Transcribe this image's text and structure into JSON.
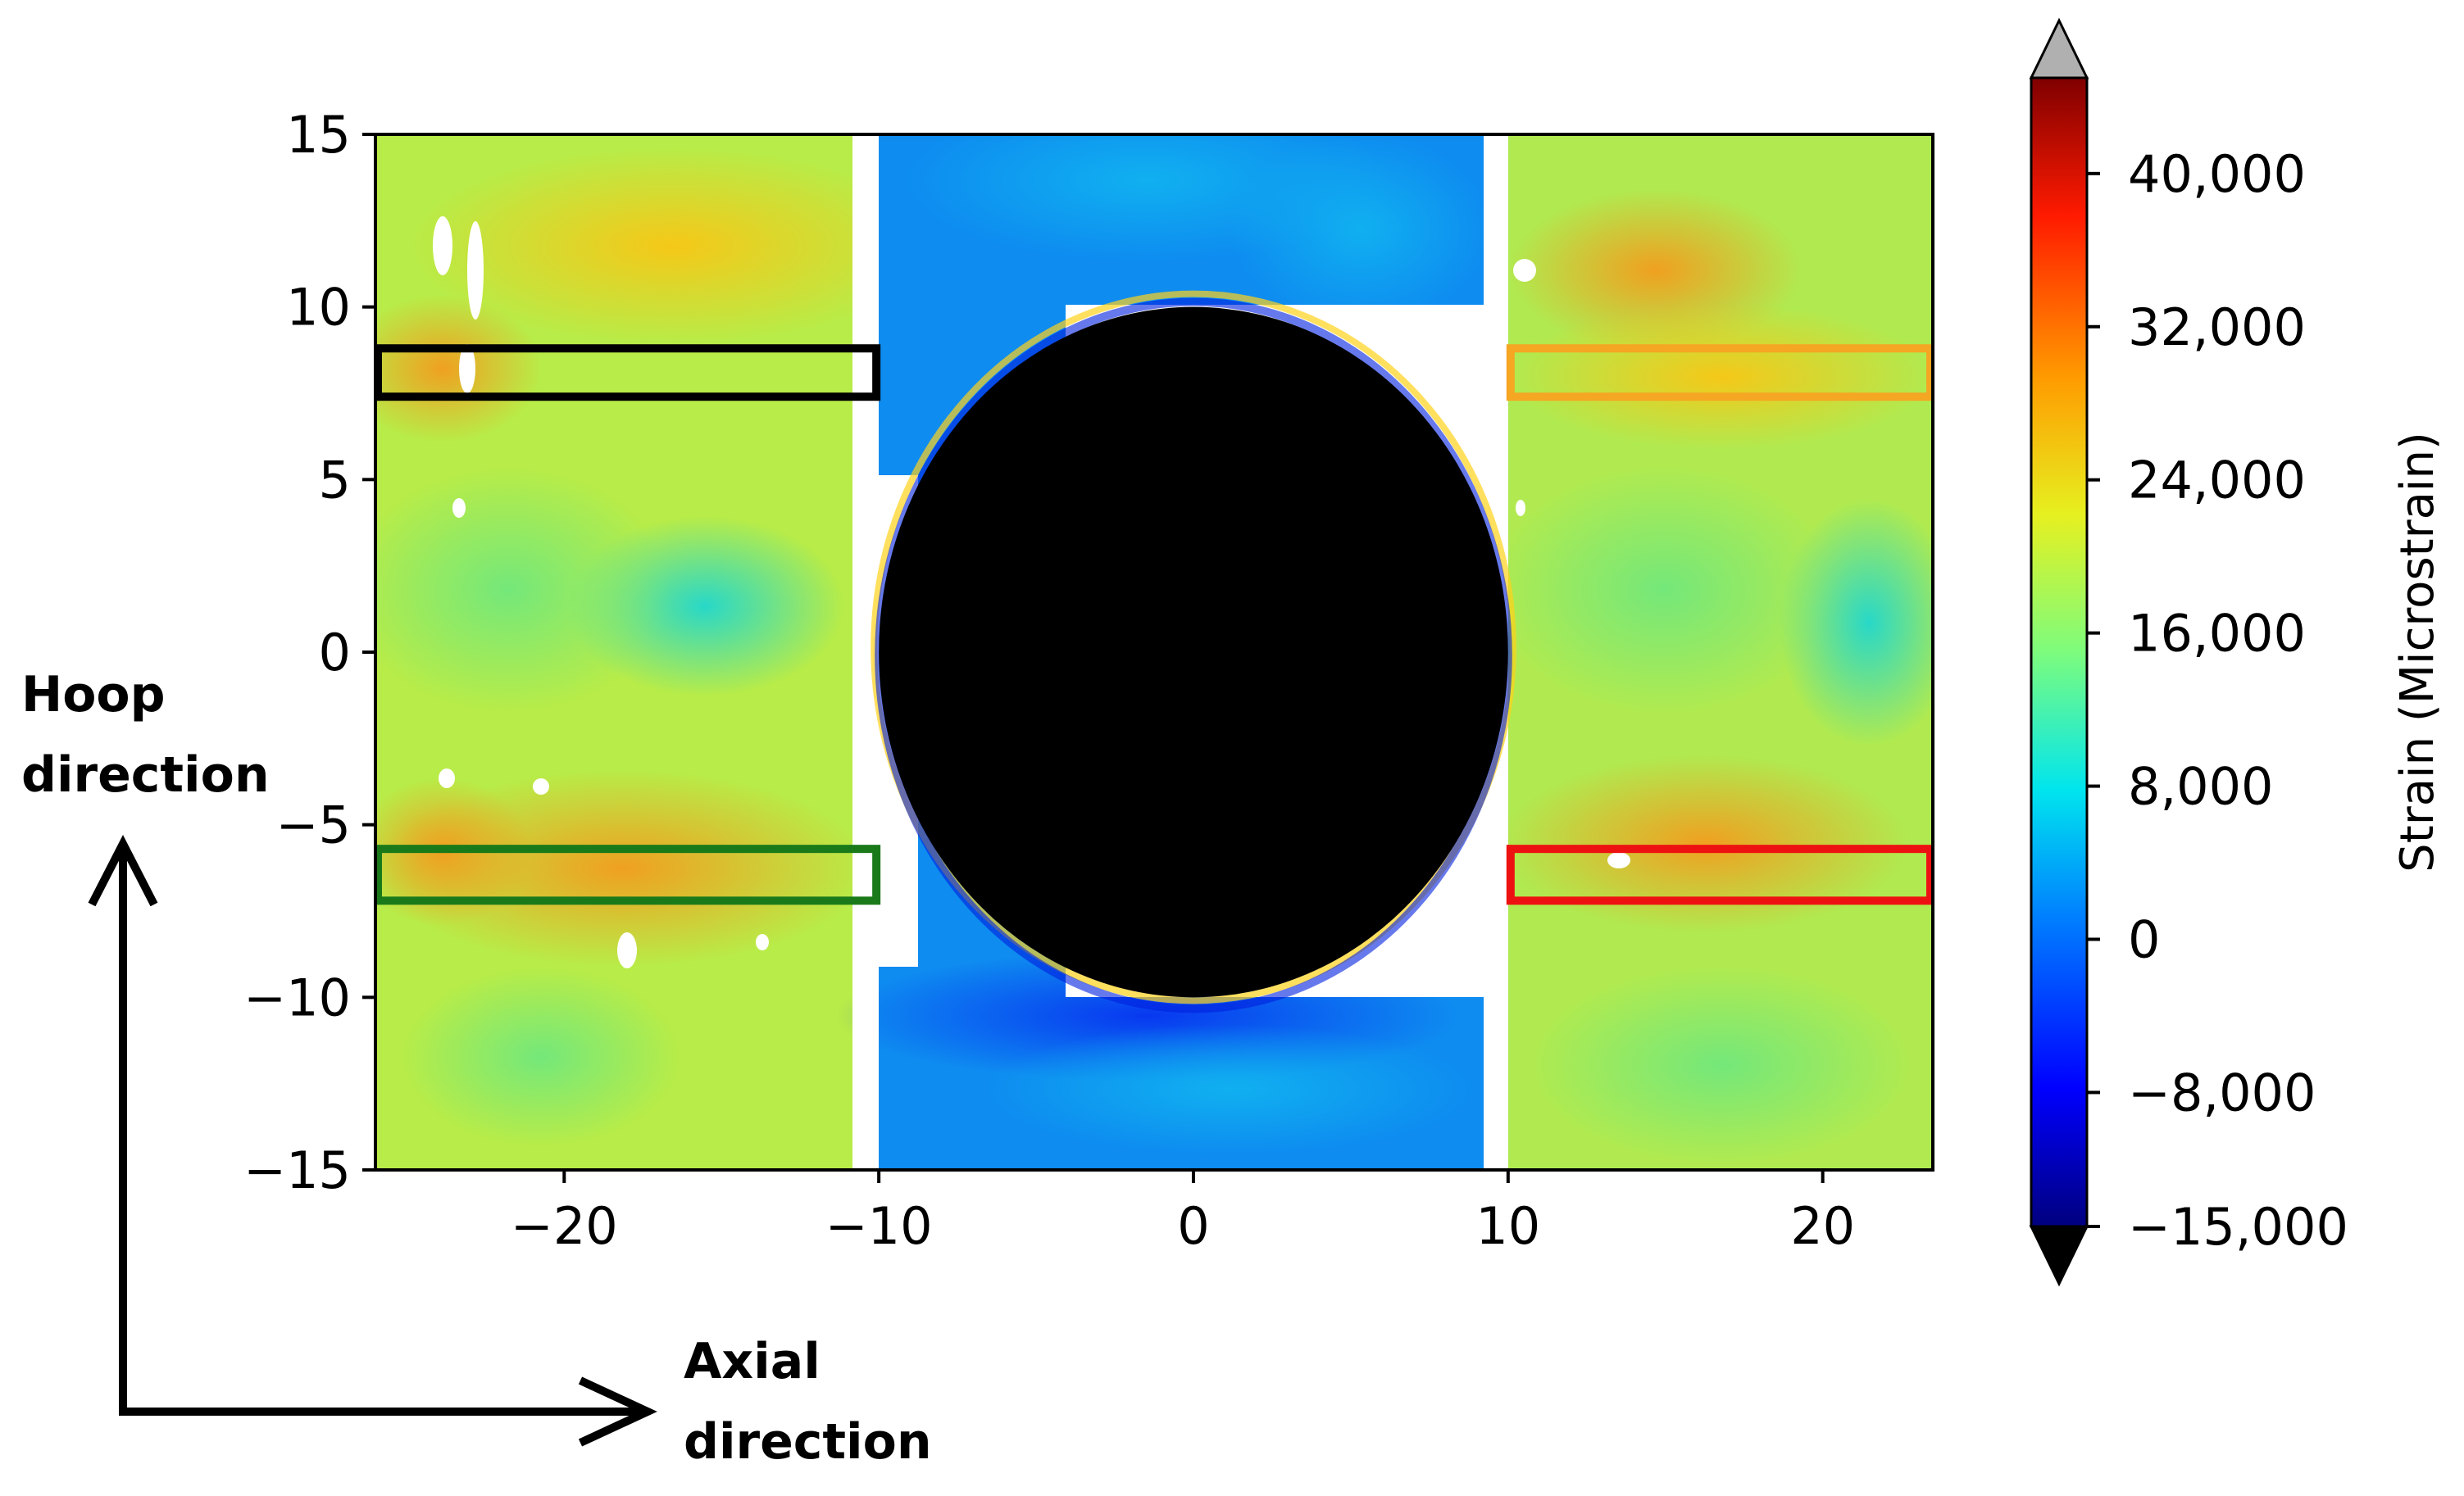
{
  "chart_data": {
    "type": "heatmap",
    "x_ticks": [
      -20,
      -10,
      0,
      10,
      20
    ],
    "y_ticks": [
      15,
      10,
      5,
      0,
      -5,
      -10,
      -15
    ],
    "x_tick_labels": [
      "−20",
      "−10",
      "0",
      "10",
      "20"
    ],
    "y_tick_labels": [
      "15",
      "10",
      "5",
      "0",
      "−5",
      "−10",
      "−15"
    ],
    "xlim": [
      -26,
      23.5
    ],
    "ylim": [
      -15,
      15
    ],
    "colorbar": {
      "label": "Strain (Microstrain)",
      "range": [
        -15000,
        45000
      ],
      "ticks": [
        40000,
        32000,
        24000,
        16000,
        8000,
        0,
        -8000,
        -15000
      ],
      "tick_labels": [
        "40,000",
        "32,000",
        "24,000",
        "16,000",
        "8,000",
        "0",
        "−8,000",
        "−15,000"
      ],
      "extend": "both",
      "over_color": "#b0b0b0",
      "under_color": "#000000"
    },
    "regions": [
      {
        "x_range": [
          -26,
          -10
        ],
        "y_range": [
          -15,
          15
        ],
        "approx_strain": 22000
      },
      {
        "x_range": [
          -10,
          10
        ],
        "y_range": [
          -15,
          15
        ],
        "approx_strain": 3000
      },
      {
        "x_range": [
          10,
          23.5
        ],
        "y_range": [
          -15,
          15
        ],
        "approx_strain": 22000
      }
    ],
    "hole": {
      "center": [
        0,
        0
      ],
      "radius_x": 10,
      "radius_y": 10
    },
    "gauge_boxes": [
      {
        "color": "#000000",
        "x_range": [
          -26,
          -10
        ],
        "y_range": [
          7.4,
          8.8
        ]
      },
      {
        "color": "#f5a623",
        "x_range": [
          10,
          23.5
        ],
        "y_range": [
          7.4,
          8.8
        ]
      },
      {
        "color": "#1a7a1a",
        "x_range": [
          -26,
          -10
        ],
        "y_range": [
          -7.2,
          -5.7
        ]
      },
      {
        "color": "#ee1111",
        "x_range": [
          10,
          23.5
        ],
        "y_range": [
          -7.2,
          -5.7
        ]
      }
    ]
  },
  "annotations": {
    "hoop_line1": "Hoop",
    "hoop_line2": "direction",
    "axial_line1": "Axial",
    "axial_line2": "direction"
  }
}
